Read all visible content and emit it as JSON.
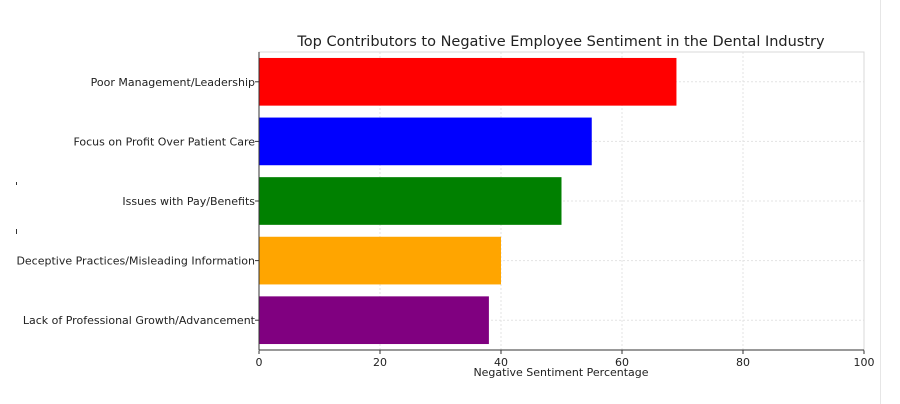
{
  "chart_data": {
    "type": "bar",
    "orientation": "horizontal",
    "title": "Top Contributors to Negative Employee Sentiment in the Dental Industry",
    "xlabel": "Negative Sentiment Percentage",
    "ylabel": "",
    "xlim": [
      0,
      100
    ],
    "xticks": [
      "0",
      "20",
      "40",
      "60",
      "80",
      "100"
    ],
    "grid": true,
    "categories": [
      "Poor Management/Leadership",
      "Focus on Profit Over Patient Care",
      "Issues with Pay/Benefits",
      "Deceptive Practices/Misleading Information",
      "Lack of Professional Growth/Advancement"
    ],
    "values": [
      69,
      55,
      50,
      40,
      38
    ],
    "colors": [
      "#ff0000",
      "#0000ff",
      "#008000",
      "#ffa500",
      "#800080"
    ]
  }
}
